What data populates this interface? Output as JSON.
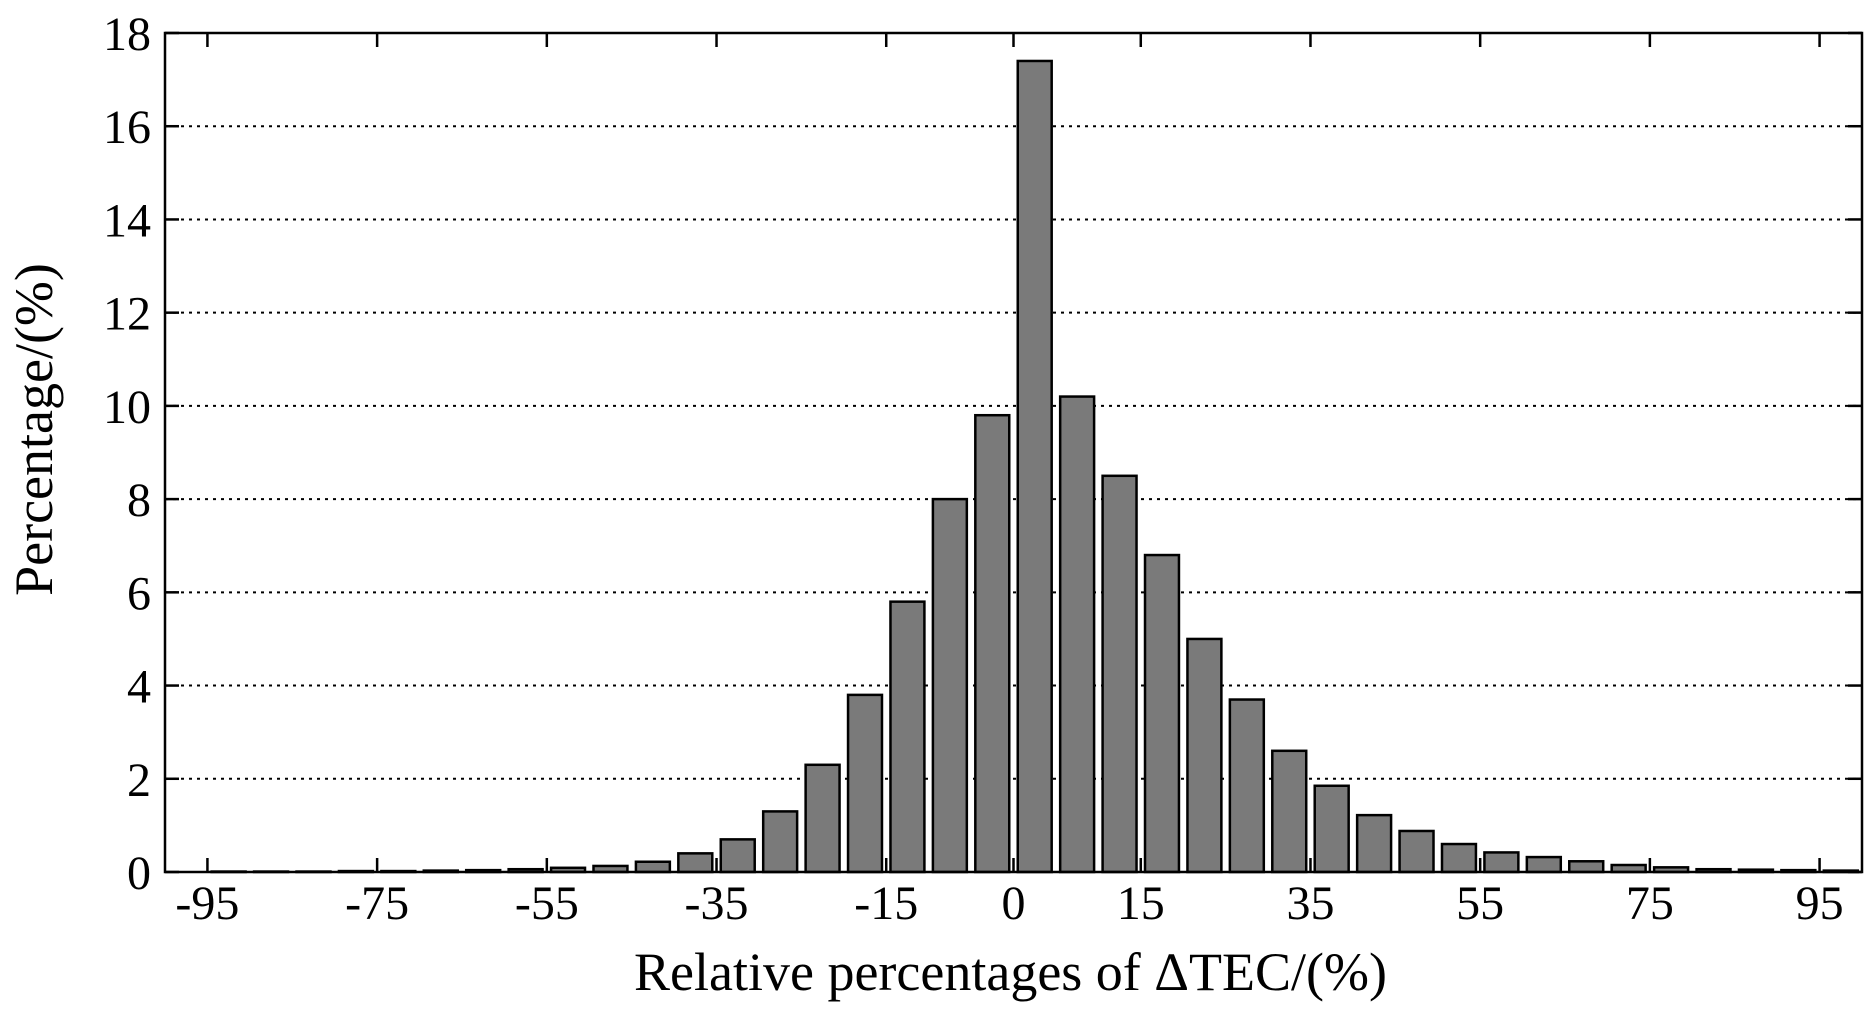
{
  "chart_data": {
    "type": "bar",
    "title": "",
    "xlabel": "Relative percentages of ΔTEC/(%)",
    "ylabel": "Percentage/(%)",
    "xlim": [
      -100,
      100
    ],
    "ylim": [
      0,
      18
    ],
    "grid": "horizontal dotted",
    "bar_width": 4,
    "xticks": [
      -95,
      -75,
      -55,
      -35,
      -15,
      0,
      15,
      35,
      55,
      75,
      95
    ],
    "yticks": [
      0,
      2,
      4,
      6,
      8,
      10,
      12,
      14,
      16,
      18
    ],
    "x": [
      -97.5,
      -92.5,
      -87.5,
      -82.5,
      -77.5,
      -72.5,
      -67.5,
      -62.5,
      -57.5,
      -52.5,
      -47.5,
      -42.5,
      -37.5,
      -32.5,
      -27.5,
      -22.5,
      -17.5,
      -12.5,
      -7.5,
      -2.5,
      2.5,
      7.5,
      12.5,
      17.5,
      22.5,
      27.5,
      32.5,
      37.5,
      42.5,
      47.5,
      52.5,
      57.5,
      62.5,
      67.5,
      72.5,
      77.5,
      82.5,
      87.5,
      92.5,
      97.5
    ],
    "values": [
      0.0,
      0.01,
      0.01,
      0.01,
      0.02,
      0.02,
      0.03,
      0.04,
      0.06,
      0.09,
      0.13,
      0.22,
      0.4,
      0.7,
      1.3,
      2.3,
      3.8,
      5.8,
      8.0,
      9.8,
      17.4,
      10.2,
      8.5,
      6.8,
      5.0,
      3.7,
      2.6,
      1.85,
      1.22,
      0.88,
      0.6,
      0.42,
      0.32,
      0.23,
      0.15,
      0.1,
      0.06,
      0.05,
      0.04,
      0.03
    ],
    "bar_color": "#7a7a7a",
    "bar_edge_color": "#000000",
    "grid_color": "#000000"
  }
}
